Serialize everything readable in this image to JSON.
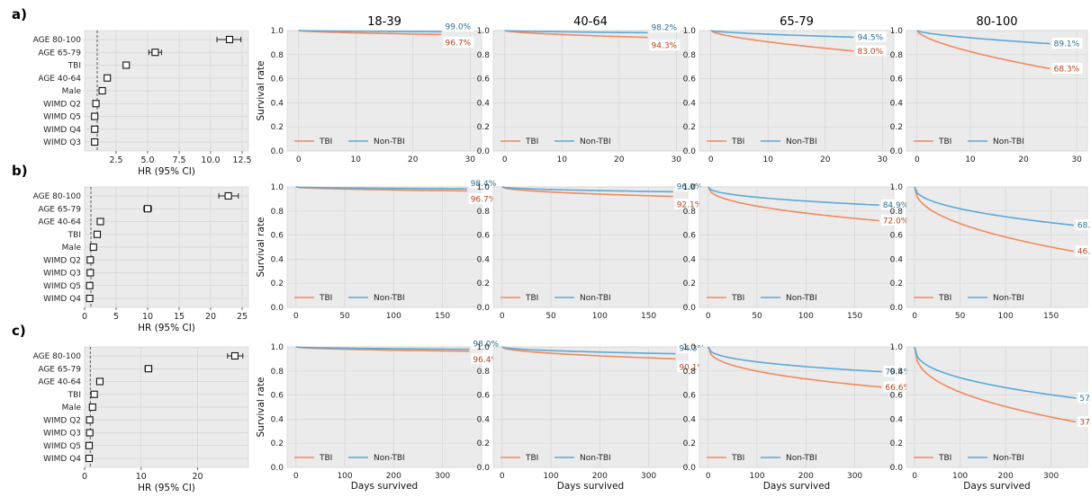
{
  "figure": {
    "row_labels": [
      "a)",
      "b)",
      "c)"
    ],
    "column_titles": [
      "18-39",
      "40-64",
      "65-79",
      "80-100"
    ],
    "forest_xlabel": "HR (95% CI)",
    "km_ylabel": "Survival rate",
    "km_xlabel": "Days survived",
    "legend": [
      "TBI",
      "Non-TBI"
    ],
    "colors": {
      "tbi": "#f08a5d",
      "non_tbi": "#5aa9d6",
      "tbi_text": "#b5441b",
      "non_tbi_text": "#2a6f97",
      "panel_bg": "#ebebeb",
      "grid": "#d4d4d4"
    }
  },
  "chart_data": [
    {
      "type": "forest",
      "row": "a",
      "title": "",
      "xlabel": "HR (95% CI)",
      "xlim": [
        0,
        13
      ],
      "xticks": [
        "2.5",
        "5.0",
        "7.5",
        "10.0",
        "12.5"
      ],
      "xtick_values": [
        2.5,
        5.0,
        7.5,
        10.0,
        12.5
      ],
      "reference_line": 1,
      "items": [
        {
          "label": "AGE 80-100",
          "hr": 11.5,
          "lo": 10.5,
          "hi": 12.4
        },
        {
          "label": "AGE 65-79",
          "hr": 5.6,
          "lo": 5.1,
          "hi": 6.1
        },
        {
          "label": "TBI",
          "hr": 3.3,
          "lo": 3.1,
          "hi": 3.5
        },
        {
          "label": "AGE 40-64",
          "hr": 1.8,
          "lo": 1.7,
          "hi": 1.9
        },
        {
          "label": "Male",
          "hr": 1.4,
          "lo": 1.3,
          "hi": 1.5
        },
        {
          "label": "WIMD Q2",
          "hr": 0.9,
          "lo": 0.85,
          "hi": 0.95
        },
        {
          "label": "WIMD Q5",
          "hr": 0.8,
          "lo": 0.75,
          "hi": 0.85
        },
        {
          "label": "WIMD Q4",
          "hr": 0.8,
          "lo": 0.75,
          "hi": 0.85
        },
        {
          "label": "WIMD Q3",
          "hr": 0.8,
          "lo": 0.75,
          "hi": 0.85
        }
      ]
    },
    {
      "type": "forest",
      "row": "b",
      "title": "",
      "xlabel": "HR (95% CI)",
      "xlim": [
        0,
        26
      ],
      "xticks": [
        "0",
        "5",
        "10",
        "15",
        "20",
        "25"
      ],
      "xtick_values": [
        0,
        5,
        10,
        15,
        20,
        25
      ],
      "reference_line": 1,
      "items": [
        {
          "label": "AGE 80-100",
          "hr": 22.8,
          "lo": 21.3,
          "hi": 24.4
        },
        {
          "label": "AGE 65-79",
          "hr": 10.0,
          "lo": 9.4,
          "hi": 10.6
        },
        {
          "label": "AGE 40-64",
          "hr": 2.5,
          "lo": 2.35,
          "hi": 2.65
        },
        {
          "label": "TBI",
          "hr": 2.0,
          "lo": 1.9,
          "hi": 2.1
        },
        {
          "label": "Male",
          "hr": 1.4,
          "lo": 1.3,
          "hi": 1.5
        },
        {
          "label": "WIMD Q2",
          "hr": 0.9,
          "lo": 0.85,
          "hi": 0.95
        },
        {
          "label": "WIMD Q3",
          "hr": 0.9,
          "lo": 0.85,
          "hi": 0.95
        },
        {
          "label": "WIMD Q5",
          "hr": 0.8,
          "lo": 0.75,
          "hi": 0.85
        },
        {
          "label": "WIMD Q4",
          "hr": 0.8,
          "lo": 0.75,
          "hi": 0.85
        }
      ]
    },
    {
      "type": "forest",
      "row": "c",
      "title": "",
      "xlabel": "HR (95% CI)",
      "xlim": [
        0,
        29
      ],
      "xticks": [
        "0",
        "10",
        "20"
      ],
      "xtick_values": [
        0,
        10,
        20
      ],
      "reference_line": 1,
      "items": [
        {
          "label": "AGE 80-100",
          "hr": 26.6,
          "lo": 25.3,
          "hi": 28.0
        },
        {
          "label": "AGE 65-79",
          "hr": 11.3,
          "lo": 10.7,
          "hi": 11.9
        },
        {
          "label": "AGE 40-64",
          "hr": 2.7,
          "lo": 2.55,
          "hi": 2.85
        },
        {
          "label": "TBI",
          "hr": 1.7,
          "lo": 1.6,
          "hi": 1.8
        },
        {
          "label": "Male",
          "hr": 1.4,
          "lo": 1.3,
          "hi": 1.5
        },
        {
          "label": "WIMD Q2",
          "hr": 0.9,
          "lo": 0.85,
          "hi": 0.95
        },
        {
          "label": "WIMD Q3",
          "hr": 0.9,
          "lo": 0.85,
          "hi": 0.95
        },
        {
          "label": "WIMD Q5",
          "hr": 0.8,
          "lo": 0.75,
          "hi": 0.85
        },
        {
          "label": "WIMD Q4",
          "hr": 0.8,
          "lo": 0.75,
          "hi": 0.85
        }
      ]
    },
    {
      "type": "line",
      "row": "a",
      "title": "18-39",
      "xlabel": "",
      "ylabel": "Survival rate",
      "xlim": [
        -2,
        32
      ],
      "ylim": [
        0,
        1
      ],
      "xticks": [
        0,
        10,
        20,
        30
      ],
      "yticks": [
        0.0,
        0.2,
        0.4,
        0.6,
        0.8,
        1.0
      ],
      "tend": 25,
      "curvature": 0.6,
      "series": [
        {
          "name": "TBI",
          "end": 0.967,
          "label": "96.7%"
        },
        {
          "name": "Non-TBI",
          "end": 0.99,
          "label": "99.0%"
        }
      ]
    },
    {
      "type": "line",
      "row": "a",
      "title": "40-64",
      "xlabel": "",
      "ylabel": "",
      "xlim": [
        -2,
        32
      ],
      "ylim": [
        0,
        1
      ],
      "xticks": [
        0,
        10,
        20,
        30
      ],
      "yticks": [
        0.0,
        0.2,
        0.4,
        0.6,
        0.8,
        1.0
      ],
      "tend": 25,
      "curvature": 0.6,
      "series": [
        {
          "name": "TBI",
          "end": 0.943,
          "label": "94.3%"
        },
        {
          "name": "Non-TBI",
          "end": 0.982,
          "label": "98.2%"
        }
      ]
    },
    {
      "type": "line",
      "row": "a",
      "title": "65-79",
      "xlabel": "",
      "ylabel": "",
      "xlim": [
        -2,
        32
      ],
      "ylim": [
        0,
        1
      ],
      "xticks": [
        0,
        10,
        20,
        30
      ],
      "yticks": [
        0.0,
        0.2,
        0.4,
        0.6,
        0.8,
        1.0
      ],
      "tend": 25,
      "curvature": 0.65,
      "series": [
        {
          "name": "TBI",
          "end": 0.83,
          "label": "83.0%"
        },
        {
          "name": "Non-TBI",
          "end": 0.945,
          "label": "94.5%"
        }
      ]
    },
    {
      "type": "line",
      "row": "a",
      "title": "80-100",
      "xlabel": "",
      "ylabel": "",
      "xlim": [
        -2,
        32
      ],
      "ylim": [
        0,
        1
      ],
      "xticks": [
        0,
        10,
        20,
        30
      ],
      "yticks": [
        0.0,
        0.2,
        0.4,
        0.6,
        0.8,
        1.0
      ],
      "tend": 25,
      "curvature": 0.65,
      "series": [
        {
          "name": "TBI",
          "end": 0.683,
          "label": "68.3%"
        },
        {
          "name": "Non-TBI",
          "end": 0.891,
          "label": "89.1%"
        }
      ]
    },
    {
      "type": "line",
      "row": "b",
      "title": "",
      "xlabel": "",
      "ylabel": "Survival rate",
      "xlim": [
        -9,
        190
      ],
      "ylim": [
        0,
        1
      ],
      "xticks": [
        0,
        50,
        100,
        150
      ],
      "yticks": [
        0.0,
        0.2,
        0.4,
        0.6,
        0.8,
        1.0
      ],
      "tend": 175,
      "curvature": 0.5,
      "series": [
        {
          "name": "TBI",
          "end": 0.967,
          "label": "96.7%"
        },
        {
          "name": "Non-TBI",
          "end": 0.984,
          "label": "98.4%"
        }
      ]
    },
    {
      "type": "line",
      "row": "b",
      "title": "",
      "xlabel": "",
      "ylabel": "",
      "xlim": [
        -9,
        190
      ],
      "ylim": [
        0,
        1
      ],
      "xticks": [
        0,
        50,
        100,
        150
      ],
      "yticks": [
        0.0,
        0.2,
        0.4,
        0.6,
        0.8,
        1.0
      ],
      "tend": 175,
      "curvature": 0.5,
      "series": [
        {
          "name": "TBI",
          "end": 0.921,
          "label": "92.1%"
        },
        {
          "name": "Non-TBI",
          "end": 0.96,
          "label": "96.0%"
        }
      ]
    },
    {
      "type": "line",
      "row": "b",
      "title": "",
      "xlabel": "",
      "ylabel": "",
      "xlim": [
        -9,
        190
      ],
      "ylim": [
        0,
        1
      ],
      "xticks": [
        0,
        50,
        100,
        150
      ],
      "yticks": [
        0.0,
        0.2,
        0.4,
        0.6,
        0.8,
        1.0
      ],
      "tend": 175,
      "curvature": 0.45,
      "series": [
        {
          "name": "TBI",
          "end": 0.72,
          "label": "72.0%"
        },
        {
          "name": "Non-TBI",
          "end": 0.849,
          "label": "84.9%"
        }
      ]
    },
    {
      "type": "line",
      "row": "b",
      "title": "",
      "xlabel": "",
      "ylabel": "",
      "xlim": [
        -9,
        190
      ],
      "ylim": [
        0,
        1
      ],
      "xticks": [
        0,
        50,
        100,
        150
      ],
      "yticks": [
        0.0,
        0.2,
        0.4,
        0.6,
        0.8,
        1.0
      ],
      "tend": 175,
      "curvature": 0.45,
      "series": [
        {
          "name": "TBI",
          "end": 0.465,
          "label": "46.5%"
        },
        {
          "name": "Non-TBI",
          "end": 0.682,
          "label": "68.2%"
        }
      ]
    },
    {
      "type": "line",
      "row": "c",
      "title": "",
      "xlabel": "Days survived",
      "ylabel": "Survival rate",
      "xlim": [
        -18,
        380
      ],
      "ylim": [
        0,
        1
      ],
      "xticks": [
        0,
        100,
        200,
        300
      ],
      "yticks": [
        0.0,
        0.2,
        0.4,
        0.6,
        0.8,
        1.0
      ],
      "tend": 355,
      "curvature": 0.5,
      "series": [
        {
          "name": "TBI",
          "end": 0.964,
          "label": "96.4%"
        },
        {
          "name": "Non-TBI",
          "end": 0.98,
          "label": "98.0%"
        }
      ]
    },
    {
      "type": "line",
      "row": "c",
      "title": "",
      "xlabel": "Days survived",
      "ylabel": "",
      "xlim": [
        -18,
        380
      ],
      "ylim": [
        0,
        1
      ],
      "xticks": [
        0,
        100,
        200,
        300
      ],
      "yticks": [
        0.0,
        0.2,
        0.4,
        0.6,
        0.8,
        1.0
      ],
      "tend": 355,
      "curvature": 0.5,
      "series": [
        {
          "name": "TBI",
          "end": 0.901,
          "label": "90.1%"
        },
        {
          "name": "Non-TBI",
          "end": 0.943,
          "label": "94.3%"
        }
      ]
    },
    {
      "type": "line",
      "row": "c",
      "title": "",
      "xlabel": "Days survived",
      "ylabel": "",
      "xlim": [
        -18,
        380
      ],
      "ylim": [
        0,
        1
      ],
      "xticks": [
        0,
        100,
        200,
        300
      ],
      "yticks": [
        0.0,
        0.2,
        0.4,
        0.6,
        0.8,
        1.0
      ],
      "tend": 355,
      "curvature": 0.4,
      "series": [
        {
          "name": "TBI",
          "end": 0.666,
          "label": "66.6%"
        },
        {
          "name": "Non-TBI",
          "end": 0.794,
          "label": "79.4%"
        }
      ]
    },
    {
      "type": "line",
      "row": "c",
      "title": "",
      "xlabel": "Days survived",
      "ylabel": "",
      "xlim": [
        -18,
        380
      ],
      "ylim": [
        0,
        1
      ],
      "xticks": [
        0,
        100,
        200,
        300
      ],
      "yticks": [
        0.0,
        0.2,
        0.4,
        0.6,
        0.8,
        1.0
      ],
      "tend": 355,
      "curvature": 0.4,
      "series": [
        {
          "name": "TBI",
          "end": 0.377,
          "label": "37.7%"
        },
        {
          "name": "Non-TBI",
          "end": 0.575,
          "label": "57.5%"
        }
      ]
    }
  ]
}
